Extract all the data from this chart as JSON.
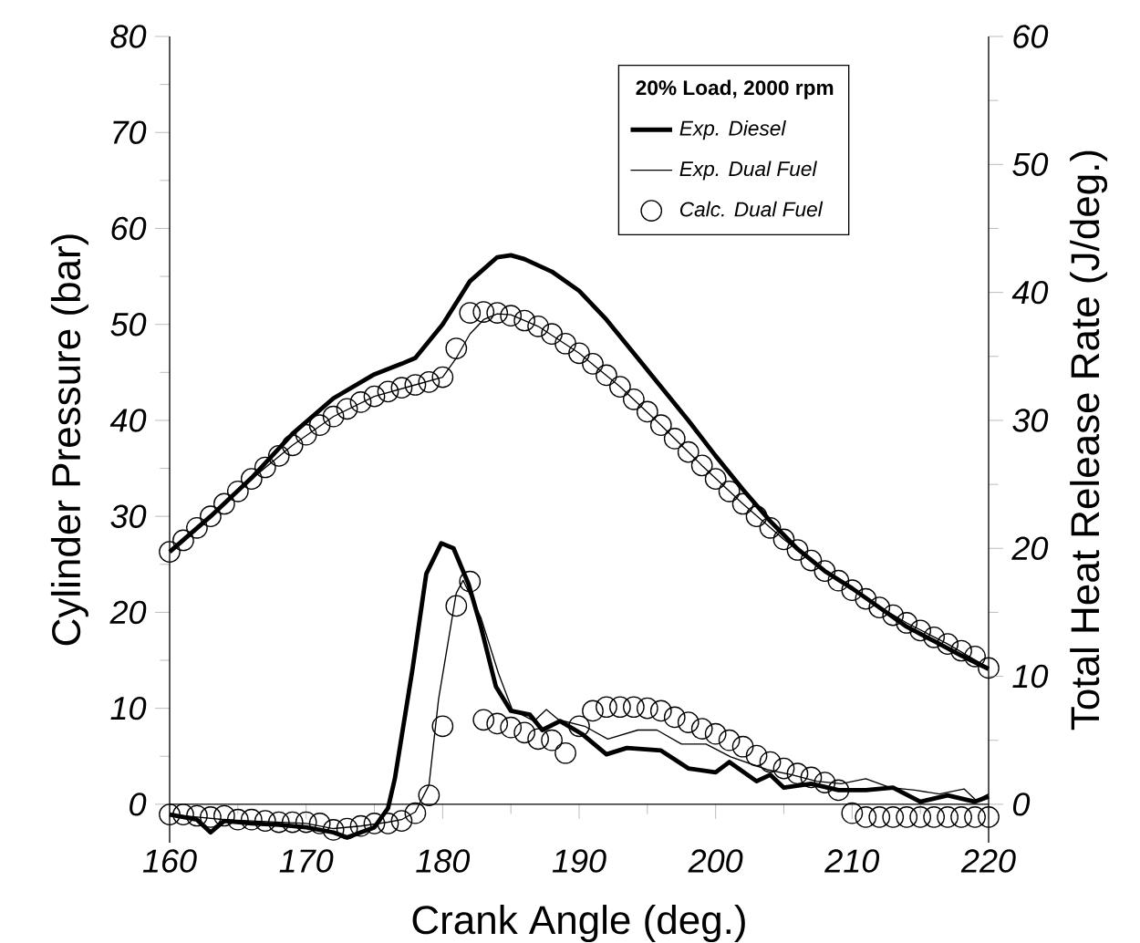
{
  "chart_data": {
    "type": "line",
    "legend_title": "20% Load, 2000 rpm",
    "xlabel": "Crank Angle (deg.)",
    "ylabel": "Cylinder Pressure (bar)",
    "y2label": "Total Heat Release Rate (J/deg.)",
    "xlim": [
      160,
      220
    ],
    "xticks": [
      160,
      {
        "value": 165,
        "label": null
      },
      170,
      {
        "value": 175,
        "label": null
      },
      180,
      {
        "value": 185,
        "label": null
      },
      190,
      {
        "value": 195,
        "label": null
      },
      200,
      {
        "value": 205,
        "label": null
      },
      210,
      {
        "value": 215,
        "label": null
      },
      220
    ],
    "ylim": [
      -4,
      80
    ],
    "yticks": [
      0,
      {
        "value": 5,
        "label": null
      },
      10,
      {
        "value": 15,
        "label": null
      },
      20,
      {
        "value": 25,
        "label": null
      },
      30,
      {
        "value": 35,
        "label": null
      },
      40,
      {
        "value": 45,
        "label": null
      },
      50,
      {
        "value": 55,
        "label": null
      },
      60,
      {
        "value": 65,
        "label": null
      },
      70,
      {
        "value": 75,
        "label": null
      },
      80
    ],
    "y2lim": [
      -3,
      60
    ],
    "y2ticks": [
      0,
      {
        "value": 5,
        "label": null
      },
      10,
      {
        "value": 15,
        "label": null
      },
      20,
      {
        "value": 25,
        "label": null
      },
      30,
      {
        "value": 35,
        "label": null
      },
      40,
      {
        "value": 45,
        "label": null
      },
      50,
      {
        "value": 55,
        "label": null
      },
      60
    ],
    "legend": "top right",
    "series": [
      {
        "name": "Exp. Diesel",
        "color": "#000000",
        "x": [
          160,
          163,
          166,
          169,
          172,
          175,
          177,
          178,
          180,
          182,
          184,
          185,
          186,
          188,
          190,
          192,
          194,
          196,
          198,
          200,
          202,
          204,
          206,
          208,
          210,
          212,
          214,
          216,
          218,
          220
        ],
        "values": [
          26.3,
          30,
          34,
          38.6,
          42.3,
          44.8,
          45.9,
          46.5,
          50,
          54.5,
          57,
          57.2,
          56.8,
          55.5,
          53.5,
          50.5,
          47,
          43.5,
          40,
          36.3,
          32.8,
          29.5,
          26.6,
          24.3,
          22.5,
          20.5,
          18.5,
          17,
          15.5,
          14.1
        ]
      },
      {
        "name": "Exp. Dual Fuel",
        "color": "#000000",
        "x": [
          160,
          163,
          166,
          169,
          172,
          175,
          178,
          180,
          181,
          182,
          183,
          184,
          185,
          187,
          190,
          193,
          196,
          199,
          202,
          205,
          208,
          211,
          214,
          217,
          220
        ],
        "values": [
          26.3,
          30,
          33.9,
          37.4,
          40.4,
          42.5,
          43.7,
          44.5,
          46.5,
          49,
          50.5,
          51.1,
          51,
          49.8,
          47,
          43.5,
          39.5,
          35.3,
          31.3,
          27.6,
          24.3,
          21.4,
          18.9,
          16.7,
          14.2
        ]
      },
      {
        "name": "Calc. Dual Fuel",
        "type": "scatter",
        "marker": "circle",
        "color": "#000000",
        "x": [
          160,
          161,
          162,
          163,
          164,
          165,
          166,
          167,
          168,
          169,
          170,
          171,
          172,
          173,
          174,
          175,
          176,
          177,
          178,
          179,
          180,
          181,
          182,
          183,
          184,
          185,
          186,
          187,
          188,
          189,
          190,
          191,
          192,
          193,
          194,
          195,
          196,
          197,
          198,
          199,
          200,
          201,
          202,
          203,
          204,
          205,
          206,
          207,
          208,
          209,
          210,
          211,
          212,
          213,
          214,
          215,
          216,
          217,
          218,
          219,
          220
        ],
        "values": [
          26.3,
          27.5,
          28.8,
          30,
          31.3,
          32.6,
          33.9,
          35.1,
          36.3,
          37.4,
          38.5,
          39.5,
          40.4,
          41.2,
          41.9,
          42.5,
          43,
          43.4,
          43.7,
          44,
          44.5,
          47.5,
          51.2,
          51.3,
          51.2,
          50.9,
          50.4,
          49.8,
          49,
          48,
          47,
          45.9,
          44.7,
          43.5,
          42.2,
          40.9,
          39.5,
          38.1,
          36.7,
          35.3,
          33.9,
          32.6,
          31.3,
          30,
          28.8,
          27.6,
          26.5,
          25.4,
          24.3,
          23.3,
          22.3,
          21.4,
          20.5,
          19.7,
          18.9,
          18.1,
          17.4,
          16.7,
          16,
          15.4,
          14.2
        ]
      },
      {
        "axis": "y2",
        "color": "#000000",
        "x": [
          160,
          161,
          162,
          163,
          164,
          166,
          168,
          170,
          172,
          173,
          174,
          175,
          176,
          176.5,
          177.8,
          178.8,
          179.9,
          180.8,
          181.9,
          182.8,
          183.9,
          185,
          186.4,
          187.3,
          188.6,
          190.2,
          192,
          193.5,
          196,
          198,
          200,
          201,
          203,
          204,
          205,
          207,
          209,
          211,
          213,
          215,
          217,
          219,
          220
        ],
        "values": [
          -0.8,
          -1.0,
          -1.2,
          -2.2,
          -1.3,
          -1.5,
          -1.6,
          -1.8,
          -2.2,
          -2.6,
          -2.2,
          -1.8,
          -0.3,
          2.0,
          10.6,
          18.0,
          20.4,
          20.0,
          17.2,
          13.9,
          9.2,
          7.3,
          7.0,
          5.8,
          6.5,
          5.5,
          3.9,
          4.4,
          4.2,
          2.8,
          2.5,
          3.3,
          1.8,
          2.3,
          1.3,
          1.6,
          1.1,
          1.1,
          1.3,
          0.2,
          0.7,
          0.2,
          0.6
        ]
      },
      {
        "axis": "y2",
        "color": "#000000",
        "x": [
          160,
          162,
          164,
          166,
          168,
          170,
          172,
          174,
          176,
          177,
          178,
          179,
          179.7,
          181,
          181.5,
          182.8,
          184.1,
          185.1,
          186.7,
          187.6,
          188.5,
          190.4,
          192.1,
          194.3,
          195.7,
          197.5,
          199.3,
          201.1,
          203.8,
          205.6,
          207.4,
          209.2,
          211,
          212.8,
          214.6,
          216.4,
          218.2,
          219.1,
          220
        ],
        "values": [
          -0.8,
          -1.0,
          -1.2,
          -1.3,
          -1.4,
          -1.5,
          -1.9,
          -1.7,
          -1.4,
          -1.2,
          -0.6,
          1.5,
          8.2,
          16.5,
          17.5,
          14.6,
          10.2,
          7.4,
          6.5,
          7.4,
          6.6,
          6.1,
          5.1,
          5.8,
          5.8,
          4.7,
          4.7,
          3.7,
          2.7,
          2.3,
          1.8,
          1.6,
          2.0,
          1.3,
          1.1,
          0.8,
          1.2,
          0.3,
          0.8
        ]
      },
      {
        "type": "scatter",
        "axis": "y2",
        "marker": "circle",
        "color": "#000000",
        "x": [
          160,
          161,
          162,
          163,
          164,
          165,
          166,
          167,
          168,
          169,
          170,
          171,
          172,
          173,
          174,
          175,
          176,
          177,
          178,
          179,
          180,
          181,
          182,
          183,
          184,
          185,
          186,
          187,
          188,
          189,
          190,
          191,
          192,
          193,
          194,
          195,
          196,
          197,
          198,
          199,
          200,
          201,
          202,
          203,
          204,
          205,
          206,
          207,
          208,
          209,
          210,
          211,
          212,
          213,
          214,
          215,
          216,
          217,
          218,
          219,
          220
        ],
        "values": [
          -0.8,
          -0.8,
          -0.9,
          -1.0,
          -0.9,
          -1.2,
          -1.2,
          -1.3,
          -1.4,
          -1.4,
          -1.4,
          -1.5,
          -2.0,
          -1.9,
          -1.7,
          -1.5,
          -1.5,
          -1.3,
          -0.7,
          0.7,
          6.1,
          15.5,
          17.4,
          6.6,
          6.3,
          6.0,
          5.6,
          5.1,
          5.0,
          4.0,
          6.1,
          7.3,
          7.6,
          7.6,
          7.6,
          7.5,
          7.3,
          6.8,
          6.4,
          5.9,
          5.5,
          5.0,
          4.5,
          3.8,
          3.3,
          2.8,
          2.4,
          2.1,
          1.7,
          1.1,
          -0.7,
          -1.0,
          -1.0,
          -1.0,
          -1.0,
          -1.0,
          -1.0,
          -1.0,
          -1.0,
          -1.0,
          -1.0
        ]
      }
    ]
  }
}
